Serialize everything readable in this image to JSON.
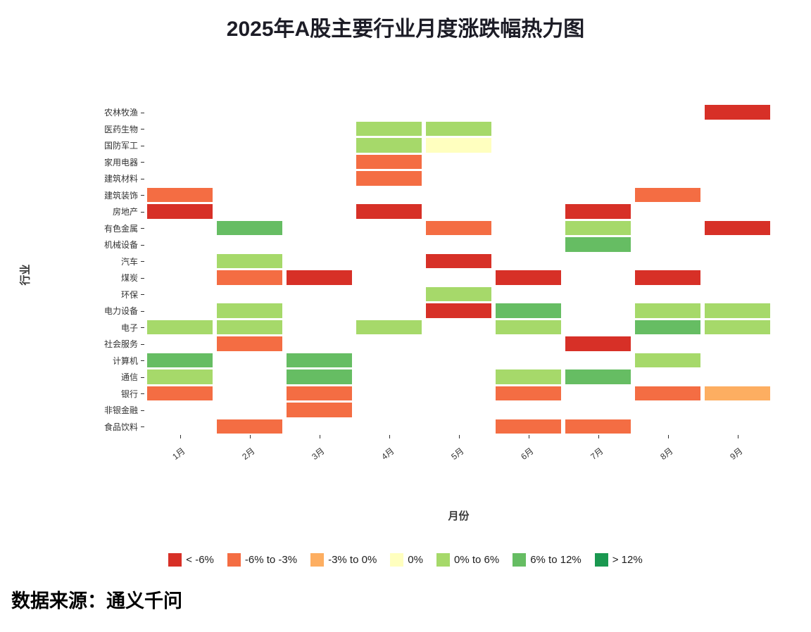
{
  "page": {
    "source": "数据来源：通义千问",
    "background": "#ffffff"
  },
  "chart_data": {
    "type": "heatmap",
    "title": "2025年A股主要行业月度涨跌幅热力图",
    "xlabel": "月份",
    "ylabel": "行业",
    "x_categories": [
      "1月",
      "2月",
      "3月",
      "4月",
      "5月",
      "6月",
      "7月",
      "8月",
      "9月"
    ],
    "y_categories": [
      "农林牧渔",
      "医药生物",
      "国防军工",
      "家用电器",
      "建筑材料",
      "建筑装饰",
      "房地产",
      "有色金属",
      "机械设备",
      "汽车",
      "煤炭",
      "环保",
      "电力设备",
      "电子",
      "社会服务",
      "计算机",
      "通信",
      "银行",
      "非银金融",
      "食品饮料"
    ],
    "legend_position": "bottom",
    "legend": [
      {
        "label": "< -6%",
        "color": "#d73027"
      },
      {
        "label": "-6% to -3%",
        "color": "#f46d43"
      },
      {
        "label": "-3% to 0%",
        "color": "#fdae61"
      },
      {
        "label": "0%",
        "color": "#ffffbf"
      },
      {
        "label": "0% to 6%",
        "color": "#a6d96a"
      },
      {
        "label": "6% to 12%",
        "color": "#66bd63"
      },
      {
        "label": "> 12%",
        "color": "#1a9850"
      }
    ],
    "values_note": "Rows follow y_categories order, columns follow x_categories order; each entry is an index into legend buckets, null = no cell drawn.",
    "values": [
      [
        null,
        null,
        null,
        null,
        null,
        null,
        null,
        null,
        0
      ],
      [
        null,
        null,
        null,
        4,
        4,
        null,
        null,
        null,
        null
      ],
      [
        null,
        null,
        null,
        4,
        3,
        null,
        null,
        null,
        null
      ],
      [
        null,
        null,
        null,
        1,
        null,
        null,
        null,
        null,
        null
      ],
      [
        null,
        null,
        null,
        1,
        null,
        null,
        null,
        null,
        null
      ],
      [
        1,
        null,
        null,
        null,
        null,
        null,
        null,
        1,
        null
      ],
      [
        0,
        null,
        null,
        0,
        null,
        null,
        0,
        null,
        null
      ],
      [
        null,
        5,
        null,
        null,
        1,
        null,
        4,
        null,
        0
      ],
      [
        null,
        null,
        null,
        null,
        null,
        null,
        5,
        null,
        null
      ],
      [
        null,
        4,
        null,
        null,
        0,
        null,
        null,
        null,
        null
      ],
      [
        null,
        1,
        0,
        null,
        null,
        0,
        null,
        0,
        null
      ],
      [
        null,
        null,
        null,
        null,
        4,
        null,
        null,
        null,
        null
      ],
      [
        null,
        4,
        null,
        null,
        0,
        5,
        null,
        4,
        4
      ],
      [
        4,
        4,
        null,
        4,
        null,
        4,
        null,
        5,
        4
      ],
      [
        null,
        1,
        null,
        null,
        null,
        null,
        0,
        null,
        null
      ],
      [
        5,
        null,
        5,
        null,
        null,
        null,
        null,
        4,
        null
      ],
      [
        4,
        null,
        5,
        null,
        null,
        4,
        5,
        null,
        null
      ],
      [
        1,
        null,
        1,
        null,
        null,
        1,
        null,
        1,
        2
      ],
      [
        null,
        null,
        1,
        null,
        null,
        null,
        null,
        null,
        null
      ],
      [
        null,
        1,
        null,
        null,
        null,
        1,
        1,
        null,
        null
      ]
    ]
  }
}
